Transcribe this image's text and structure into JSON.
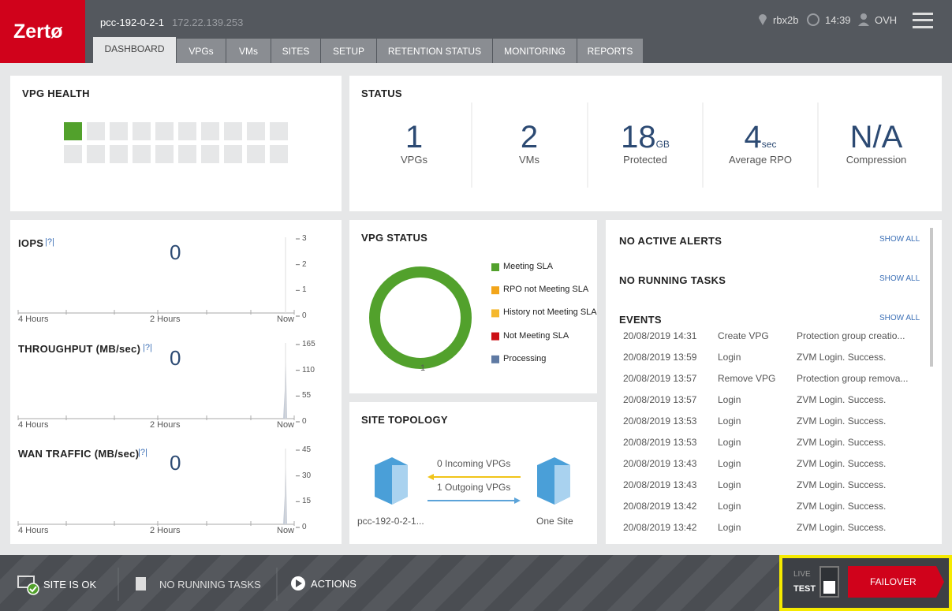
{
  "header": {
    "logo": "Zertø",
    "host": "pcc-192-0-2-1",
    "ip": "172.22.139.253",
    "site": "rbx2b",
    "time": "14:39",
    "user": "OVH"
  },
  "tabs": [
    "DASHBOARD",
    "VPGs",
    "VMs",
    "SITES",
    "SETUP",
    "RETENTION STATUS",
    "MONITORING",
    "REPORTS"
  ],
  "vpg_health": {
    "title": "VPG HEALTH"
  },
  "status": {
    "title": "STATUS",
    "items": [
      {
        "value": 1,
        "label": "VPGs"
      },
      {
        "value": 2,
        "label": "VMs"
      },
      {
        "value": 18,
        "unit": "GB",
        "label": "Protected"
      },
      {
        "value": 4,
        "unit": "sec",
        "label": "Average RPO"
      },
      {
        "value": "N/A",
        "label": "Compression"
      }
    ]
  },
  "metrics": {
    "help": "|?|",
    "time_labels": [
      "4 Hours",
      "2 Hours",
      "Now"
    ],
    "items": [
      {
        "title": "IOPS",
        "value": 0,
        "yticks": [
          0,
          1,
          2,
          3
        ]
      },
      {
        "title": "THROUGHPUT (MB/sec)",
        "value": 0,
        "yticks": [
          0,
          55,
          110,
          165
        ]
      },
      {
        "title": "WAN TRAFFIC (MB/sec)",
        "value": 0,
        "yticks": [
          0,
          15,
          30,
          45
        ]
      }
    ]
  },
  "vpg_status": {
    "title": "VPG STATUS",
    "total": 1,
    "legend": [
      {
        "name": "Meeting SLA",
        "color": "#52a12c"
      },
      {
        "name": "RPO not Meeting SLA",
        "color": "#f2a51a"
      },
      {
        "name": "History not Meeting SLA",
        "color": "#f5b82e"
      },
      {
        "name": "Not Meeting SLA",
        "color": "#cc1016"
      },
      {
        "name": "Processing",
        "color": "#5f7aa3"
      }
    ]
  },
  "site_topology": {
    "title": "SITE TOPOLOGY",
    "incoming": "0 Incoming VPGs",
    "outgoing": "1 Outgoing VPGs",
    "local_site": "pcc-192-0-2-1...",
    "remote_site": "One Site"
  },
  "alerts": {
    "alerts_title": "NO ACTIVE ALERTS",
    "tasks_title": "NO RUNNING TASKS",
    "events_title": "EVENTS",
    "show_all": "SHOW ALL",
    "events": [
      [
        "20/08/2019 14:31",
        "Create VPG",
        "Protection group creatio..."
      ],
      [
        "20/08/2019 13:59",
        "Login",
        "ZVM Login. Success."
      ],
      [
        "20/08/2019 13:57",
        "Remove VPG",
        "Protection group remova..."
      ],
      [
        "20/08/2019 13:57",
        "Login",
        "ZVM Login. Success."
      ],
      [
        "20/08/2019 13:53",
        "Login",
        "ZVM Login. Success."
      ],
      [
        "20/08/2019 13:53",
        "Login",
        "ZVM Login. Success."
      ],
      [
        "20/08/2019 13:43",
        "Login",
        "ZVM Login. Success."
      ],
      [
        "20/08/2019 13:43",
        "Login",
        "ZVM Login. Success."
      ],
      [
        "20/08/2019 13:42",
        "Login",
        "ZVM Login. Success."
      ],
      [
        "20/08/2019 13:42",
        "Login",
        "ZVM Login. Success."
      ]
    ]
  },
  "footer": {
    "site_status": "SITE IS OK",
    "tasks": "NO RUNNING TASKS",
    "actions": "ACTIONS",
    "live": "LIVE",
    "test": "TEST",
    "failover": "FAILOVER"
  }
}
